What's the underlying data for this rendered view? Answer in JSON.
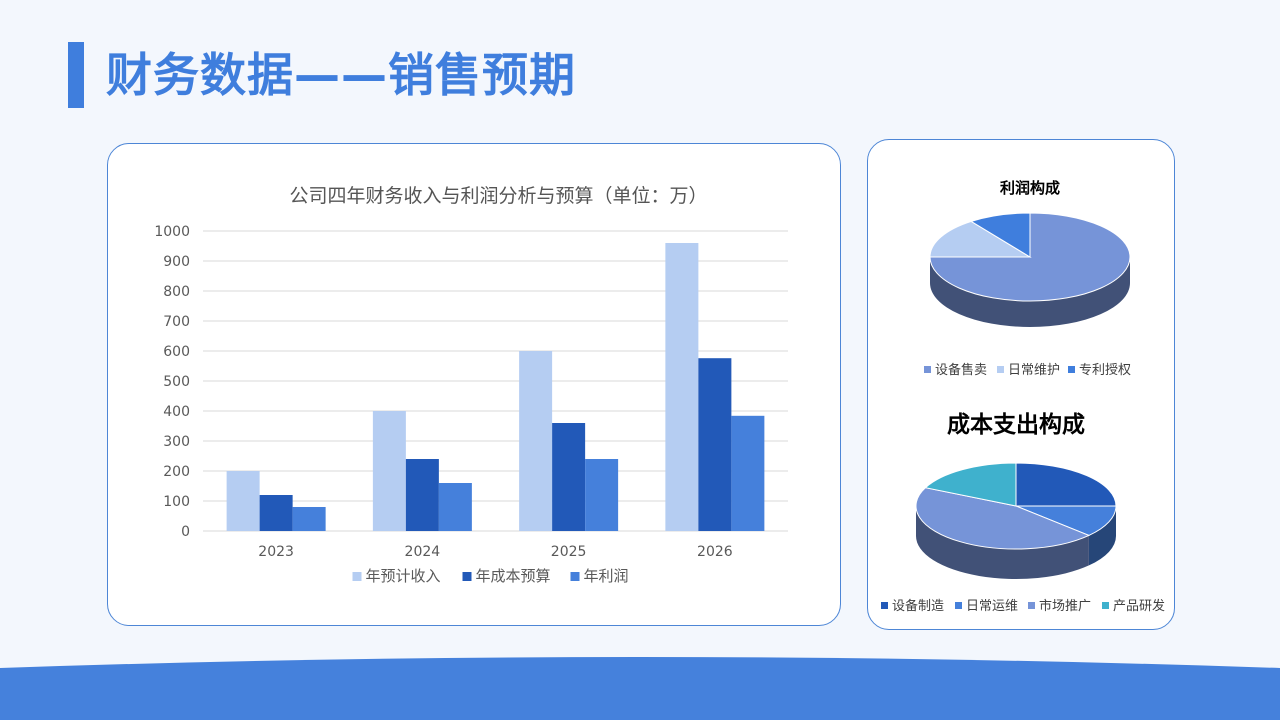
{
  "page": {
    "title": "财务数据——销售预期"
  },
  "colors": {
    "accent": "#3f7edd",
    "light_blue": "#b5cdf2",
    "dark_blue": "#2259b8",
    "mid_blue": "#4580db",
    "periwinkle": "#7694d8",
    "teal": "#3fb1cd"
  },
  "chart_data": [
    {
      "type": "bar",
      "title": "公司四年财务收入与利润分析与预算（单位：万）",
      "categories": [
        "2023",
        "2024",
        "2025",
        "2026"
      ],
      "series": [
        {
          "name": "年预计收入",
          "values": [
            200,
            400,
            600,
            960
          ],
          "color": "#b5cdf2"
        },
        {
          "name": "年成本预算",
          "values": [
            120,
            240,
            360,
            576
          ],
          "color": "#2259b8"
        },
        {
          "name": "年利润",
          "values": [
            80,
            160,
            240,
            384
          ],
          "color": "#4580db"
        }
      ],
      "ylim": [
        0,
        1000
      ],
      "yticks": [
        "0",
        "100",
        "200",
        "300",
        "400",
        "500",
        "600",
        "700",
        "800",
        "900",
        "1000"
      ],
      "grid": true,
      "legend": "bottom"
    },
    {
      "type": "pie",
      "title": "利润构成",
      "labels": [
        "设备售卖",
        "日常维护",
        "专利授权"
      ],
      "values": [
        75,
        15,
        10
      ],
      "colors": [
        "#7694d8",
        "#b5cdf2",
        "#3f7edd"
      ],
      "legend": "bottom"
    },
    {
      "type": "pie",
      "title": "成本支出构成",
      "labels": [
        "设备制造",
        "日常运维",
        "市场推广",
        "产品研发"
      ],
      "values": [
        25,
        12,
        45,
        18
      ],
      "colors": [
        "#2259b8",
        "#4580db",
        "#7694d8",
        "#3fb1cd"
      ],
      "legend": "bottom"
    }
  ]
}
